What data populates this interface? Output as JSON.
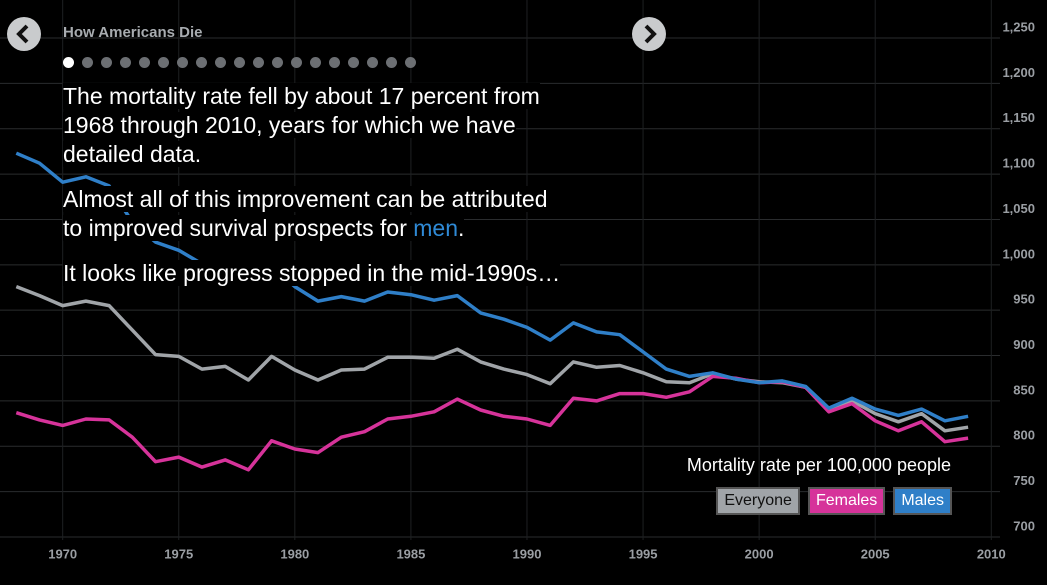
{
  "header": {
    "title": "How Americans Die"
  },
  "story": {
    "paragraphs": [
      [
        "The mortality rate fell by about 17 percent from 1968 through 2010, years for which we have detailed data."
      ],
      [
        "Almost all of this improvement can be attributed to improved survival prospects for ",
        "men",
        "."
      ],
      [
        "It looks like progress stopped in the mid-1990s…"
      ]
    ]
  },
  "chart_data": {
    "type": "line",
    "legend_title": "Mortality rate per 100,000 people",
    "x": [
      1968,
      1969,
      1970,
      1971,
      1972,
      1973,
      1974,
      1975,
      1976,
      1977,
      1978,
      1979,
      1980,
      1981,
      1982,
      1983,
      1984,
      1985,
      1986,
      1987,
      1988,
      1989,
      1990,
      1991,
      1992,
      1993,
      1994,
      1995,
      1996,
      1997,
      1998,
      1999,
      2000,
      2001,
      2002,
      2003,
      2004,
      2005,
      2006,
      2007,
      2008,
      2009
    ],
    "series": [
      {
        "name": "Everyone",
        "color": "#a0a4a8",
        "values": [
          965,
          955,
          944,
          949,
          944,
          917,
          890,
          888,
          874,
          877,
          862,
          888,
          873,
          862,
          873,
          874,
          887,
          887,
          886,
          896,
          882,
          874,
          868,
          858,
          882,
          876,
          878,
          870,
          860,
          859,
          869,
          863,
          860,
          859,
          854,
          830,
          839,
          825,
          816,
          825,
          806,
          810
        ]
      },
      {
        "name": "Females",
        "color": "#d6339a",
        "values": [
          826,
          818,
          812,
          819,
          818,
          799,
          772,
          777,
          766,
          774,
          763,
          795,
          786,
          782,
          799,
          805,
          819,
          822,
          827,
          841,
          829,
          822,
          819,
          812,
          842,
          839,
          847,
          847,
          843,
          849,
          866,
          864,
          859,
          860,
          854,
          827,
          836,
          817,
          806,
          816,
          794,
          798
        ]
      },
      {
        "name": "Males",
        "color": "#2f7fc8",
        "values": [
          1112,
          1101,
          1080,
          1086,
          1076,
          1036,
          1014,
          1005,
          990,
          989,
          968,
          988,
          965,
          949,
          954,
          949,
          959,
          956,
          950,
          955,
          936,
          929,
          920,
          906,
          925,
          915,
          912,
          893,
          874,
          866,
          870,
          863,
          859,
          861,
          855,
          831,
          842,
          830,
          823,
          830,
          817,
          822
        ]
      }
    ],
    "xlim": [
      1967.3,
      2012.4
    ],
    "ylim": [
      700,
      1250
    ],
    "xticks": [
      1970,
      1975,
      1980,
      1985,
      1990,
      1995,
      2000,
      2005,
      2010
    ],
    "yticks": [
      700,
      750,
      800,
      850,
      900,
      950,
      {
        "value": 1000,
        "label": "1,000"
      },
      {
        "value": 1050,
        "label": "1,050"
      },
      {
        "value": 1100,
        "label": "1,100"
      },
      {
        "value": 1150,
        "label": "1,150"
      },
      {
        "value": 1200,
        "label": "1,200"
      },
      {
        "value": 1250,
        "label": "1,250"
      }
    ],
    "grid": true
  }
}
